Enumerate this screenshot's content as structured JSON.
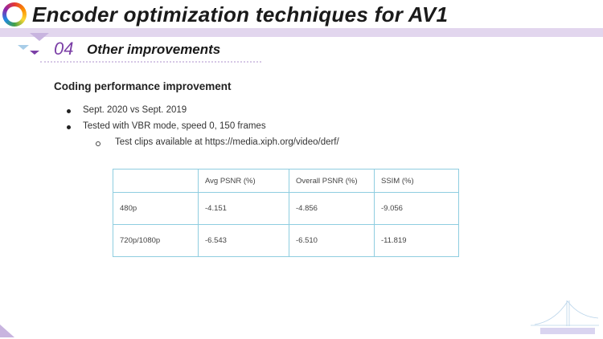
{
  "header": {
    "title": "Encoder optimization techniques for AV1",
    "section_number": "04",
    "section_title": "Other improvements"
  },
  "content": {
    "heading": "Coding performance improvement",
    "bullets": [
      "Sept. 2020 vs Sept. 2019",
      "Tested with VBR mode, speed 0, 150 frames"
    ],
    "sub_bullets": [
      "Test clips available at https://media.xiph.org/video/derf/"
    ]
  },
  "table": {
    "columns": [
      "",
      "Avg PSNR (%)",
      "Overall PSNR (%)",
      "SSIM (%)"
    ],
    "rows": [
      [
        "480p",
        "-4.151",
        "-4.856",
        "-9.056"
      ],
      [
        "720p/1080p",
        "-6.543",
        "-6.510",
        "-11.819"
      ]
    ]
  },
  "colors": {
    "accent": "#7b3fa6",
    "bar": "#e2d6ee",
    "table_border": "#8fcde0"
  }
}
